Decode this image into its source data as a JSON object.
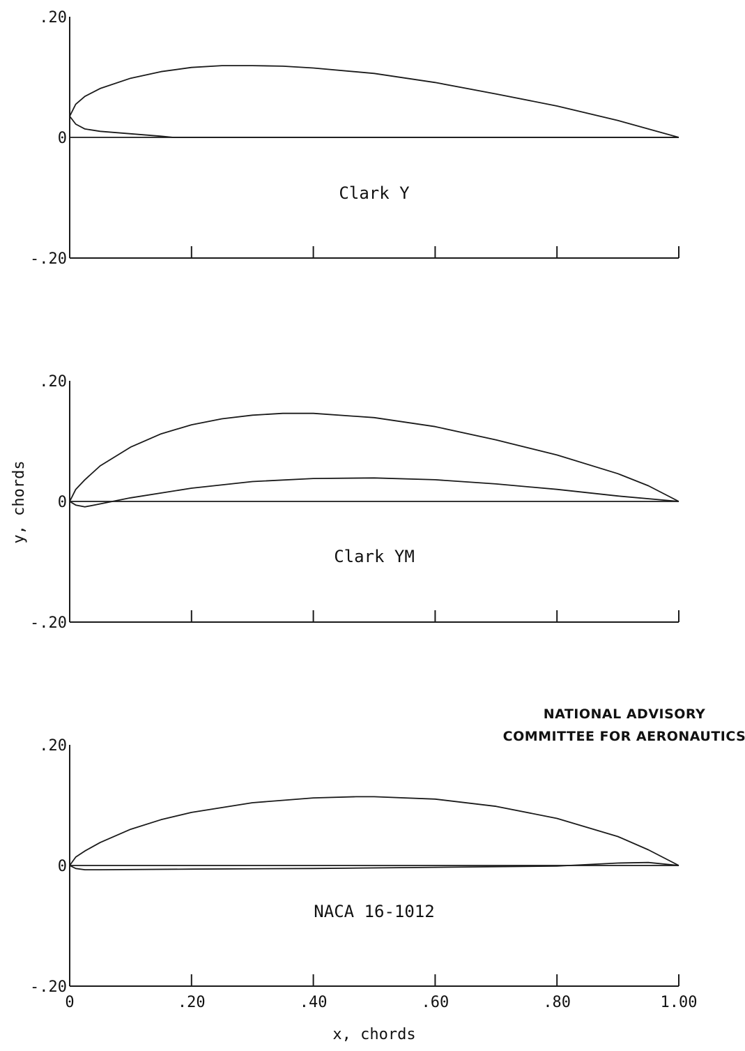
{
  "chart_data": [
    {
      "type": "line",
      "title": "Clark Y",
      "xlabel": "",
      "ylabel": "",
      "xlim": [
        0,
        1.0
      ],
      "ylim": [
        -0.2,
        0.2
      ],
      "y_ticks": [
        ".20",
        "0",
        "-.20"
      ],
      "x_ticks": [],
      "series": [
        {
          "values": [
            [
              0,
              0.035
            ],
            [
              0.01,
              0.055
            ],
            [
              0.025,
              0.068
            ],
            [
              0.05,
              0.081
            ],
            [
              0.1,
              0.098
            ],
            [
              0.15,
              0.109
            ],
            [
              0.2,
              0.116
            ],
            [
              0.25,
              0.119
            ],
            [
              0.3,
              0.119
            ],
            [
              0.35,
              0.118
            ],
            [
              0.4,
              0.115
            ],
            [
              0.5,
              0.106
            ],
            [
              0.6,
              0.091
            ],
            [
              0.7,
              0.072
            ],
            [
              0.8,
              0.052
            ],
            [
              0.9,
              0.028
            ],
            [
              1.0,
              0.0
            ]
          ]
        },
        {
          "values": [
            [
              0,
              0.035
            ],
            [
              0.01,
              0.022
            ],
            [
              0.025,
              0.014
            ],
            [
              0.05,
              0.01
            ],
            [
              0.1,
              0.006
            ],
            [
              0.15,
              0.002
            ],
            [
              0.17,
              0.0
            ],
            [
              1.0,
              0.0
            ]
          ]
        },
        {
          "values": [
            [
              0,
              0.0
            ],
            [
              1.0,
              0.0
            ]
          ]
        }
      ]
    },
    {
      "type": "line",
      "title": "Clark YM",
      "xlabel": "",
      "ylabel": "y, chords",
      "xlim": [
        0,
        1.0
      ],
      "ylim": [
        -0.2,
        0.2
      ],
      "y_ticks": [
        ".20",
        "0",
        "-.20"
      ],
      "x_ticks": [],
      "series": [
        {
          "values": [
            [
              0,
              0.0
            ],
            [
              0.01,
              0.02
            ],
            [
              0.025,
              0.036
            ],
            [
              0.05,
              0.059
            ],
            [
              0.1,
              0.09
            ],
            [
              0.15,
              0.112
            ],
            [
              0.2,
              0.127
            ],
            [
              0.25,
              0.137
            ],
            [
              0.3,
              0.143
            ],
            [
              0.35,
              0.146
            ],
            [
              0.4,
              0.146
            ],
            [
              0.5,
              0.139
            ],
            [
              0.6,
              0.124
            ],
            [
              0.7,
              0.102
            ],
            [
              0.8,
              0.077
            ],
            [
              0.9,
              0.046
            ],
            [
              0.95,
              0.026
            ],
            [
              1.0,
              0.0
            ]
          ]
        },
        {
          "values": [
            [
              0,
              0.0
            ],
            [
              0.01,
              -0.006
            ],
            [
              0.025,
              -0.009
            ],
            [
              0.04,
              -0.006
            ],
            [
              0.07,
              0.0
            ],
            [
              0.1,
              0.006
            ],
            [
              0.2,
              0.022
            ],
            [
              0.3,
              0.033
            ],
            [
              0.4,
              0.038
            ],
            [
              0.5,
              0.039
            ],
            [
              0.6,
              0.036
            ],
            [
              0.7,
              0.029
            ],
            [
              0.8,
              0.02
            ],
            [
              0.9,
              0.009
            ],
            [
              1.0,
              0.0
            ]
          ]
        },
        {
          "values": [
            [
              0,
              0.0
            ],
            [
              1.0,
              0.0
            ]
          ]
        }
      ]
    },
    {
      "type": "line",
      "title": "NACA 16-1012",
      "xlabel": "x, chords",
      "ylabel": "",
      "xlim": [
        0,
        1.0
      ],
      "ylim": [
        -0.2,
        0.2
      ],
      "y_ticks": [
        ".20",
        "0",
        "-.20"
      ],
      "x_ticks": [
        "0",
        ".20",
        ".40",
        ".60",
        ".80",
        "1.00"
      ],
      "series": [
        {
          "values": [
            [
              0,
              0.0
            ],
            [
              0.01,
              0.014
            ],
            [
              0.025,
              0.024
            ],
            [
              0.05,
              0.038
            ],
            [
              0.1,
              0.06
            ],
            [
              0.15,
              0.076
            ],
            [
              0.2,
              0.088
            ],
            [
              0.3,
              0.104
            ],
            [
              0.4,
              0.112
            ],
            [
              0.47,
              0.114
            ],
            [
              0.5,
              0.114
            ],
            [
              0.6,
              0.11
            ],
            [
              0.7,
              0.098
            ],
            [
              0.8,
              0.078
            ],
            [
              0.9,
              0.048
            ],
            [
              0.95,
              0.026
            ],
            [
              1.0,
              0.0
            ]
          ]
        },
        {
          "values": [
            [
              0,
              0.0
            ],
            [
              0.01,
              -0.005
            ],
            [
              0.025,
              -0.007
            ],
            [
              0.05,
              -0.007
            ],
            [
              0.2,
              -0.006
            ],
            [
              0.4,
              -0.005
            ],
            [
              0.6,
              -0.003
            ],
            [
              0.8,
              -0.001
            ],
            [
              0.9,
              0.004
            ],
            [
              0.95,
              0.005
            ],
            [
              1.0,
              0.0
            ]
          ]
        },
        {
          "values": [
            [
              0,
              0.0
            ],
            [
              1.0,
              0.0
            ]
          ]
        }
      ]
    }
  ],
  "credit": {
    "line1": "NATIONAL ADVISORY",
    "line2": "COMMITTEE FOR AERONAUTICS"
  }
}
